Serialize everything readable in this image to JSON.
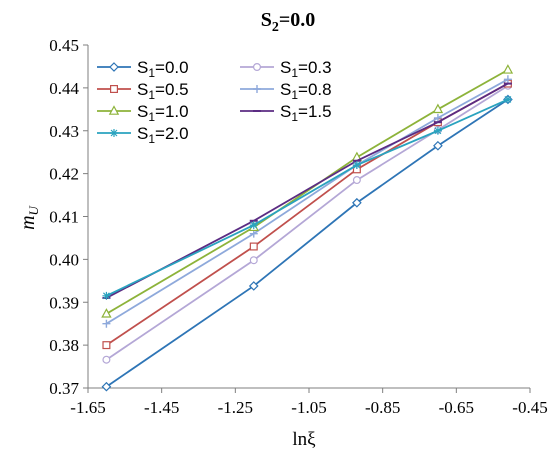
{
  "chart_data": {
    "type": "line",
    "title_main": "S",
    "title_sub": "2",
    "title_rest": "=0.0",
    "ylabel_main": "m",
    "ylabel_sub": "U",
    "xlabel": "lnξ",
    "xlim": [
      -1.65,
      -0.45
    ],
    "ylim": [
      0.37,
      0.45
    ],
    "xticks": [
      "-1.65",
      "-1.45",
      "-1.25",
      "-1.05",
      "-0.85",
      "-0.65",
      "-0.45"
    ],
    "yticks": [
      "0.37",
      "0.38",
      "0.39",
      "0.40",
      "0.41",
      "0.42",
      "0.43",
      "0.44",
      "0.45"
    ],
    "grid": false,
    "legend_position": "top-left",
    "x": [
      -1.6,
      -1.2,
      -0.92,
      -0.7,
      -0.51
    ],
    "series": [
      {
        "name_pre": "S",
        "name_sub": "1",
        "name_post": "=0.0",
        "marker": "diamond",
        "color": "#2E75B6",
        "values": [
          0.3703,
          0.3938,
          0.4132,
          0.4265,
          0.4373
        ]
      },
      {
        "name_pre": "S",
        "name_sub": "1",
        "name_post": "=0.3",
        "marker": "circle",
        "color": "#B4A7D6",
        "values": [
          0.3766,
          0.3998,
          0.4185,
          0.4302,
          0.4405
        ]
      },
      {
        "name_pre": "S",
        "name_sub": "1",
        "name_post": "=0.5",
        "marker": "square",
        "color": "#C0504D",
        "values": [
          0.38,
          0.403,
          0.421,
          0.432,
          0.441
        ]
      },
      {
        "name_pre": "S",
        "name_sub": "1",
        "name_post": "=0.8",
        "marker": "plus",
        "color": "#8EA9DB",
        "values": [
          0.385,
          0.406,
          0.422,
          0.433,
          0.442
        ]
      },
      {
        "name_pre": "S",
        "name_sub": "1",
        "name_post": "=1.0",
        "marker": "triangle",
        "color": "#8DB33A",
        "values": [
          0.3873,
          0.4075,
          0.4238,
          0.435,
          0.4442
        ]
      },
      {
        "name_pre": "S",
        "name_sub": "1",
        "name_post": "=1.5",
        "marker": "dash",
        "color": "#5B2C83",
        "values": [
          0.391,
          0.409,
          0.423,
          0.432,
          0.441
        ]
      },
      {
        "name_pre": "S",
        "name_sub": "1",
        "name_post": "=2.0",
        "marker": "star",
        "color": "#2AA3BF",
        "values": [
          0.3915,
          0.408,
          0.422,
          0.43,
          0.4373
        ]
      }
    ]
  }
}
